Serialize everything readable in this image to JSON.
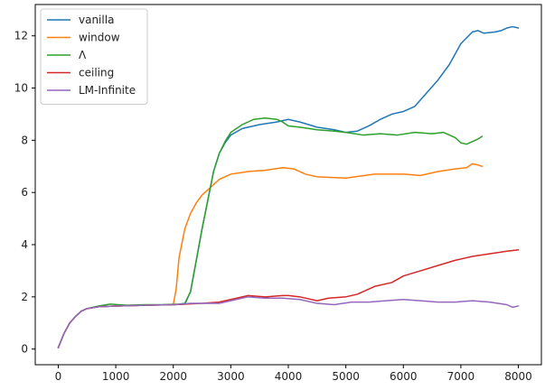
{
  "chart_data": {
    "type": "line",
    "title": "",
    "xlabel": "",
    "ylabel": "",
    "xlim": [
      -400,
      8400
    ],
    "ylim": [
      -0.6,
      13.2
    ],
    "xticks": [
      0,
      1000,
      2000,
      3000,
      4000,
      5000,
      6000,
      7000,
      8000
    ],
    "yticks": [
      0,
      2,
      4,
      6,
      8,
      10,
      12
    ],
    "grid": false,
    "legend_position": "top-left",
    "series": [
      {
        "name": "vanilla",
        "color": "#1f77b4",
        "points": [
          [
            0,
            0.05
          ],
          [
            100,
            0.6
          ],
          [
            200,
            1.0
          ],
          [
            300,
            1.25
          ],
          [
            400,
            1.45
          ],
          [
            500,
            1.55
          ],
          [
            700,
            1.62
          ],
          [
            1000,
            1.65
          ],
          [
            1500,
            1.68
          ],
          [
            2000,
            1.7
          ],
          [
            2200,
            1.72
          ],
          [
            2300,
            2.2
          ],
          [
            2400,
            3.4
          ],
          [
            2500,
            4.6
          ],
          [
            2600,
            5.7
          ],
          [
            2700,
            6.8
          ],
          [
            2800,
            7.5
          ],
          [
            2900,
            7.9
          ],
          [
            3000,
            8.2
          ],
          [
            3200,
            8.45
          ],
          [
            3500,
            8.6
          ],
          [
            3800,
            8.7
          ],
          [
            4000,
            8.8
          ],
          [
            4200,
            8.7
          ],
          [
            4500,
            8.5
          ],
          [
            4800,
            8.4
          ],
          [
            5000,
            8.3
          ],
          [
            5200,
            8.35
          ],
          [
            5400,
            8.55
          ],
          [
            5600,
            8.8
          ],
          [
            5800,
            9.0
          ],
          [
            6000,
            9.1
          ],
          [
            6200,
            9.3
          ],
          [
            6400,
            9.8
          ],
          [
            6600,
            10.3
          ],
          [
            6800,
            10.9
          ],
          [
            7000,
            11.7
          ],
          [
            7200,
            12.15
          ],
          [
            7300,
            12.2
          ],
          [
            7400,
            12.1
          ],
          [
            7600,
            12.15
          ],
          [
            7700,
            12.2
          ],
          [
            7800,
            12.3
          ],
          [
            7900,
            12.35
          ],
          [
            8000,
            12.3
          ]
        ]
      },
      {
        "name": "window",
        "color": "#ff7f0e",
        "points": [
          [
            0,
            0.05
          ],
          [
            100,
            0.6
          ],
          [
            200,
            1.0
          ],
          [
            300,
            1.25
          ],
          [
            400,
            1.45
          ],
          [
            500,
            1.55
          ],
          [
            700,
            1.62
          ],
          [
            1000,
            1.65
          ],
          [
            1500,
            1.68
          ],
          [
            2000,
            1.7
          ],
          [
            2050,
            2.3
          ],
          [
            2100,
            3.5
          ],
          [
            2200,
            4.6
          ],
          [
            2300,
            5.2
          ],
          [
            2400,
            5.6
          ],
          [
            2500,
            5.9
          ],
          [
            2600,
            6.1
          ],
          [
            2700,
            6.3
          ],
          [
            2800,
            6.5
          ],
          [
            3000,
            6.7
          ],
          [
            3300,
            6.8
          ],
          [
            3600,
            6.85
          ],
          [
            3900,
            6.95
          ],
          [
            4100,
            6.9
          ],
          [
            4300,
            6.7
          ],
          [
            4500,
            6.6
          ],
          [
            5000,
            6.55
          ],
          [
            5500,
            6.7
          ],
          [
            6000,
            6.7
          ],
          [
            6300,
            6.65
          ],
          [
            6600,
            6.8
          ],
          [
            6900,
            6.9
          ],
          [
            7100,
            6.95
          ],
          [
            7200,
            7.1
          ],
          [
            7300,
            7.05
          ],
          [
            7370,
            7.0
          ]
        ]
      },
      {
        "name": "Λ",
        "color": "#2ca02c",
        "points": [
          [
            0,
            0.05
          ],
          [
            100,
            0.6
          ],
          [
            200,
            1.0
          ],
          [
            300,
            1.25
          ],
          [
            400,
            1.45
          ],
          [
            500,
            1.55
          ],
          [
            700,
            1.65
          ],
          [
            900,
            1.72
          ],
          [
            1200,
            1.68
          ],
          [
            1500,
            1.7
          ],
          [
            1800,
            1.7
          ],
          [
            2100,
            1.72
          ],
          [
            2200,
            1.75
          ],
          [
            2300,
            2.2
          ],
          [
            2400,
            3.4
          ],
          [
            2500,
            4.6
          ],
          [
            2600,
            5.7
          ],
          [
            2700,
            6.8
          ],
          [
            2800,
            7.5
          ],
          [
            2900,
            7.95
          ],
          [
            3000,
            8.3
          ],
          [
            3200,
            8.6
          ],
          [
            3400,
            8.8
          ],
          [
            3600,
            8.85
          ],
          [
            3800,
            8.8
          ],
          [
            3900,
            8.7
          ],
          [
            4000,
            8.55
          ],
          [
            4200,
            8.5
          ],
          [
            4500,
            8.4
          ],
          [
            4800,
            8.35
          ],
          [
            5000,
            8.3
          ],
          [
            5300,
            8.2
          ],
          [
            5600,
            8.25
          ],
          [
            5900,
            8.2
          ],
          [
            6200,
            8.3
          ],
          [
            6500,
            8.25
          ],
          [
            6700,
            8.3
          ],
          [
            6900,
            8.1
          ],
          [
            7000,
            7.9
          ],
          [
            7100,
            7.85
          ],
          [
            7200,
            7.95
          ],
          [
            7300,
            8.05
          ],
          [
            7370,
            8.15
          ]
        ]
      },
      {
        "name": "ceiling",
        "color": "#d62728",
        "points": [
          [
            0,
            0.05
          ],
          [
            100,
            0.6
          ],
          [
            200,
            1.0
          ],
          [
            300,
            1.25
          ],
          [
            400,
            1.45
          ],
          [
            500,
            1.55
          ],
          [
            700,
            1.62
          ],
          [
            1000,
            1.65
          ],
          [
            1500,
            1.68
          ],
          [
            2000,
            1.7
          ],
          [
            2500,
            1.75
          ],
          [
            2800,
            1.8
          ],
          [
            3000,
            1.9
          ],
          [
            3300,
            2.05
          ],
          [
            3600,
            2.0
          ],
          [
            3900,
            2.05
          ],
          [
            4000,
            2.05
          ],
          [
            4200,
            2.0
          ],
          [
            4500,
            1.85
          ],
          [
            4700,
            1.95
          ],
          [
            5000,
            2.0
          ],
          [
            5200,
            2.1
          ],
          [
            5500,
            2.4
          ],
          [
            5800,
            2.55
          ],
          [
            6000,
            2.8
          ],
          [
            6300,
            3.0
          ],
          [
            6600,
            3.2
          ],
          [
            6900,
            3.4
          ],
          [
            7200,
            3.55
          ],
          [
            7500,
            3.65
          ],
          [
            7800,
            3.75
          ],
          [
            8000,
            3.8
          ]
        ]
      },
      {
        "name": "LM-Infinite",
        "color": "#9467bd",
        "points": [
          [
            0,
            0.05
          ],
          [
            100,
            0.6
          ],
          [
            200,
            1.0
          ],
          [
            300,
            1.25
          ],
          [
            400,
            1.45
          ],
          [
            500,
            1.55
          ],
          [
            700,
            1.62
          ],
          [
            1000,
            1.65
          ],
          [
            1500,
            1.68
          ],
          [
            2000,
            1.7
          ],
          [
            2300,
            1.75
          ],
          [
            2600,
            1.75
          ],
          [
            2800,
            1.75
          ],
          [
            3000,
            1.85
          ],
          [
            3300,
            2.0
          ],
          [
            3600,
            1.95
          ],
          [
            3900,
            1.95
          ],
          [
            4200,
            1.9
          ],
          [
            4500,
            1.75
          ],
          [
            4800,
            1.7
          ],
          [
            5100,
            1.8
          ],
          [
            5400,
            1.8
          ],
          [
            5700,
            1.85
          ],
          [
            6000,
            1.9
          ],
          [
            6300,
            1.85
          ],
          [
            6600,
            1.8
          ],
          [
            6900,
            1.8
          ],
          [
            7200,
            1.85
          ],
          [
            7500,
            1.8
          ],
          [
            7800,
            1.7
          ],
          [
            7900,
            1.6
          ],
          [
            8000,
            1.65
          ]
        ]
      }
    ]
  }
}
